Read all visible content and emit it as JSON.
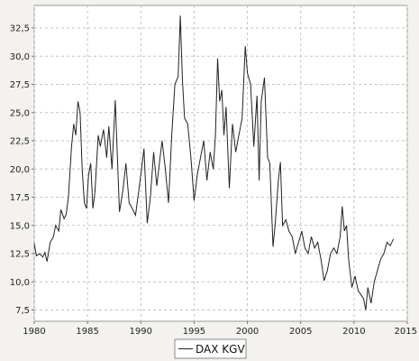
{
  "chart_data": {
    "type": "line",
    "title": "",
    "xlabel": "",
    "ylabel": "",
    "xlim": [
      1980,
      2015
    ],
    "ylim": [
      6.5,
      34.5
    ],
    "x_ticks": [
      1980,
      1985,
      1990,
      1995,
      2000,
      2005,
      2010,
      2015
    ],
    "y_ticks": [
      7.5,
      10.0,
      12.5,
      15.0,
      17.5,
      20.0,
      22.5,
      25.0,
      27.5,
      30.0,
      32.5
    ],
    "x_tick_labels": [
      "1980",
      "1985",
      "1990",
      "1995",
      "2000",
      "2005",
      "2010",
      "2015"
    ],
    "y_tick_labels": [
      "7,5",
      "10,0",
      "12,5",
      "15,0",
      "17,5",
      "20,0",
      "22,5",
      "25,0",
      "27,5",
      "30,0",
      "32,5"
    ],
    "grid": true,
    "legend_position": "bottom-center",
    "series": [
      {
        "name": "DAX KGV",
        "color": "#222222",
        "points": [
          [
            1980.0,
            13.4
          ],
          [
            1980.2,
            12.3
          ],
          [
            1980.5,
            12.5
          ],
          [
            1980.8,
            12.2
          ],
          [
            1981.0,
            12.6
          ],
          [
            1981.2,
            11.8
          ],
          [
            1981.5,
            13.5
          ],
          [
            1981.8,
            14.0
          ],
          [
            1982.0,
            15.0
          ],
          [
            1982.3,
            14.5
          ],
          [
            1982.5,
            16.4
          ],
          [
            1982.8,
            15.6
          ],
          [
            1983.0,
            16.0
          ],
          [
            1983.2,
            17.5
          ],
          [
            1983.5,
            22.0
          ],
          [
            1983.7,
            24.0
          ],
          [
            1983.9,
            23.0
          ],
          [
            1984.1,
            26.0
          ],
          [
            1984.3,
            25.0
          ],
          [
            1984.5,
            20.0
          ],
          [
            1984.7,
            17.0
          ],
          [
            1984.9,
            16.5
          ],
          [
            1985.1,
            19.5
          ],
          [
            1985.3,
            20.5
          ],
          [
            1985.5,
            16.5
          ],
          [
            1985.7,
            18.0
          ],
          [
            1986.0,
            23.0
          ],
          [
            1986.2,
            22.0
          ],
          [
            1986.5,
            23.5
          ],
          [
            1986.8,
            21.0
          ],
          [
            1987.0,
            23.8
          ],
          [
            1987.3,
            20.0
          ],
          [
            1987.6,
            26.1
          ],
          [
            1987.8,
            21.0
          ],
          [
            1988.0,
            16.2
          ],
          [
            1988.3,
            18.0
          ],
          [
            1988.6,
            20.5
          ],
          [
            1988.9,
            17.0
          ],
          [
            1989.2,
            16.5
          ],
          [
            1989.5,
            15.9
          ],
          [
            1989.8,
            18.0
          ],
          [
            1990.0,
            19.5
          ],
          [
            1990.3,
            21.8
          ],
          [
            1990.6,
            15.2
          ],
          [
            1990.9,
            17.5
          ],
          [
            1991.2,
            21.5
          ],
          [
            1991.5,
            18.5
          ],
          [
            1991.8,
            21.0
          ],
          [
            1992.0,
            22.5
          ],
          [
            1992.3,
            20.0
          ],
          [
            1992.6,
            17.0
          ],
          [
            1992.9,
            23.0
          ],
          [
            1993.2,
            27.5
          ],
          [
            1993.5,
            28.2
          ],
          [
            1993.7,
            33.6
          ],
          [
            1993.9,
            28.0
          ],
          [
            1994.1,
            24.5
          ],
          [
            1994.4,
            24.0
          ],
          [
            1994.7,
            21.0
          ],
          [
            1995.0,
            17.2
          ],
          [
            1995.3,
            19.5
          ],
          [
            1995.6,
            21.0
          ],
          [
            1995.9,
            22.5
          ],
          [
            1996.2,
            19.0
          ],
          [
            1996.5,
            21.5
          ],
          [
            1996.8,
            20.0
          ],
          [
            1997.0,
            23.0
          ],
          [
            1997.2,
            29.8
          ],
          [
            1997.4,
            26.0
          ],
          [
            1997.6,
            27.0
          ],
          [
            1997.8,
            23.0
          ],
          [
            1998.0,
            25.5
          ],
          [
            1998.3,
            18.3
          ],
          [
            1998.6,
            24.0
          ],
          [
            1998.9,
            21.5
          ],
          [
            1999.2,
            23.0
          ],
          [
            1999.5,
            24.5
          ],
          [
            1999.8,
            30.9
          ],
          [
            2000.0,
            28.5
          ],
          [
            2000.3,
            27.5
          ],
          [
            2000.6,
            22.0
          ],
          [
            2000.9,
            26.5
          ],
          [
            2001.1,
            19.0
          ],
          [
            2001.3,
            26.0
          ],
          [
            2001.6,
            28.1
          ],
          [
            2001.9,
            21.0
          ],
          [
            2002.1,
            20.5
          ],
          [
            2002.4,
            13.1
          ],
          [
            2002.6,
            15.0
          ],
          [
            2002.9,
            19.0
          ],
          [
            2003.1,
            20.6
          ],
          [
            2003.3,
            15.0
          ],
          [
            2003.6,
            15.5
          ],
          [
            2003.9,
            14.5
          ],
          [
            2004.2,
            14.0
          ],
          [
            2004.5,
            12.5
          ],
          [
            2004.8,
            13.5
          ],
          [
            2005.1,
            14.5
          ],
          [
            2005.4,
            13.0
          ],
          [
            2005.7,
            12.5
          ],
          [
            2006.0,
            14.0
          ],
          [
            2006.3,
            13.0
          ],
          [
            2006.6,
            13.5
          ],
          [
            2006.9,
            12.0
          ],
          [
            2007.2,
            10.1
          ],
          [
            2007.5,
            11.0
          ],
          [
            2007.8,
            12.5
          ],
          [
            2008.1,
            13.0
          ],
          [
            2008.4,
            12.5
          ],
          [
            2008.7,
            14.0
          ],
          [
            2008.9,
            16.7
          ],
          [
            2009.1,
            14.5
          ],
          [
            2009.3,
            15.0
          ],
          [
            2009.5,
            12.0
          ],
          [
            2009.8,
            9.5
          ],
          [
            2010.1,
            10.5
          ],
          [
            2010.4,
            9.2
          ],
          [
            2010.7,
            8.8
          ],
          [
            2010.9,
            8.5
          ],
          [
            2011.1,
            7.5
          ],
          [
            2011.3,
            9.5
          ],
          [
            2011.6,
            8.1
          ],
          [
            2011.9,
            10.0
          ],
          [
            2012.2,
            11.0
          ],
          [
            2012.5,
            12.0
          ],
          [
            2012.8,
            12.5
          ],
          [
            2013.1,
            13.5
          ],
          [
            2013.4,
            13.2
          ],
          [
            2013.7,
            13.8
          ]
        ]
      }
    ]
  }
}
